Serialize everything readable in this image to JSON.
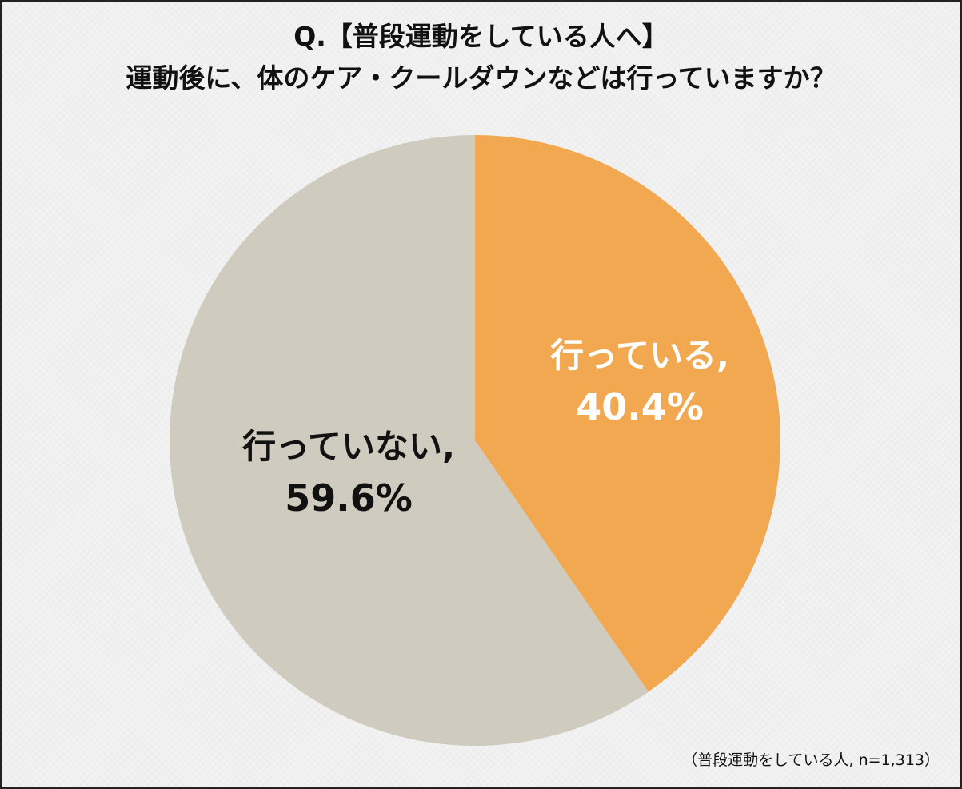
{
  "chart_data": {
    "type": "pie",
    "title_line1": "Q.【普段運動をしている人へ】",
    "title_line2": "運動後に、体のケア・クールダウンなどは行っていますか？",
    "start": "12 o'clock",
    "direction": "clockwise",
    "slices": [
      {
        "name": "行っている,",
        "value": 40.4,
        "value_label": "40.4%",
        "color": "#f2a851",
        "text_color": "#ffffff"
      },
      {
        "name": "行っていない,",
        "value": 59.6,
        "value_label": "59.6%",
        "color": "#cfcbbe",
        "text_color": "#111111"
      }
    ],
    "note": "（普段運動をしている人, n=1,313）"
  }
}
